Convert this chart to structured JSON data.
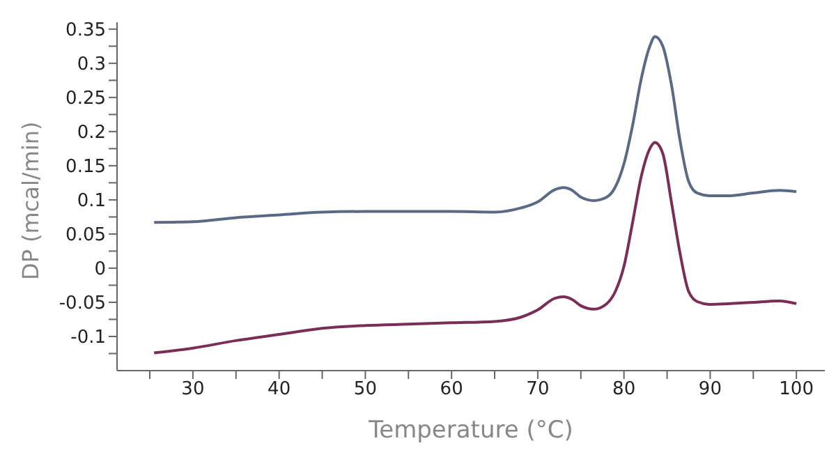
{
  "chart_data": {
    "type": "line",
    "xlabel": "Temperature (°C)",
    "ylabel": "DP (mcal/min)",
    "xlim": [
      21.2,
      103.3
    ],
    "xticks": [
      {
        "value": 25,
        "label": null
      },
      30,
      {
        "value": 35,
        "label": null
      },
      40,
      {
        "value": 45,
        "label": null
      },
      50,
      {
        "value": 55,
        "label": null
      },
      60,
      {
        "value": 65,
        "label": null
      },
      70,
      {
        "value": 75,
        "label": null
      },
      80,
      {
        "value": 85,
        "label": null
      },
      90,
      {
        "value": 95,
        "label": null
      },
      100
    ],
    "ylim": [
      -0.15,
      0.36
    ],
    "yticks": [
      {
        "value": -0.125,
        "label": null
      },
      -0.1,
      {
        "value": -0.075,
        "label": null
      },
      -0.05,
      {
        "value": -0.025,
        "label": null
      },
      0,
      {
        "value": 0.025,
        "label": null
      },
      0.05,
      {
        "value": 0.075,
        "label": null
      },
      0.1,
      {
        "value": 0.125,
        "label": null
      },
      0.15,
      {
        "value": 0.175,
        "label": null
      },
      0.2,
      {
        "value": 0.225,
        "label": null
      },
      0.25,
      {
        "value": 0.275,
        "label": null
      },
      0.3,
      {
        "value": 0.325,
        "label": null
      },
      0.35
    ],
    "x": [
      25.5,
      30,
      35,
      40,
      45,
      50,
      55,
      60,
      65,
      68,
      70,
      72,
      73,
      74,
      75,
      76.5,
      78,
      79,
      80,
      81,
      82,
      83,
      83.6,
      84.5,
      85.5,
      86.5,
      87.5,
      88.5,
      90,
      92,
      95,
      98,
      100
    ],
    "grid": false,
    "legend": false,
    "marker": "none",
    "line_style": "solid",
    "series": [
      {
        "color": "#5a6a85",
        "values": [
          0.067,
          0.068,
          0.074,
          0.078,
          0.082,
          0.083,
          0.083,
          0.083,
          0.082,
          0.088,
          0.097,
          0.115,
          0.118,
          0.114,
          0.104,
          0.099,
          0.104,
          0.119,
          0.153,
          0.209,
          0.277,
          0.325,
          0.339,
          0.325,
          0.269,
          0.187,
          0.127,
          0.11,
          0.106,
          0.106,
          0.11,
          0.114,
          0.112
        ]
      },
      {
        "color": "#7a2e55",
        "values": [
          -0.124,
          -0.117,
          -0.106,
          -0.097,
          -0.088,
          -0.084,
          -0.082,
          -0.08,
          -0.078,
          -0.072,
          -0.061,
          -0.044,
          -0.042,
          -0.046,
          -0.055,
          -0.06,
          -0.052,
          -0.034,
          0.003,
          0.067,
          0.134,
          0.175,
          0.184,
          0.168,
          0.097,
          0.022,
          -0.034,
          -0.049,
          -0.053,
          -0.052,
          -0.05,
          -0.048,
          -0.052
        ]
      }
    ]
  }
}
